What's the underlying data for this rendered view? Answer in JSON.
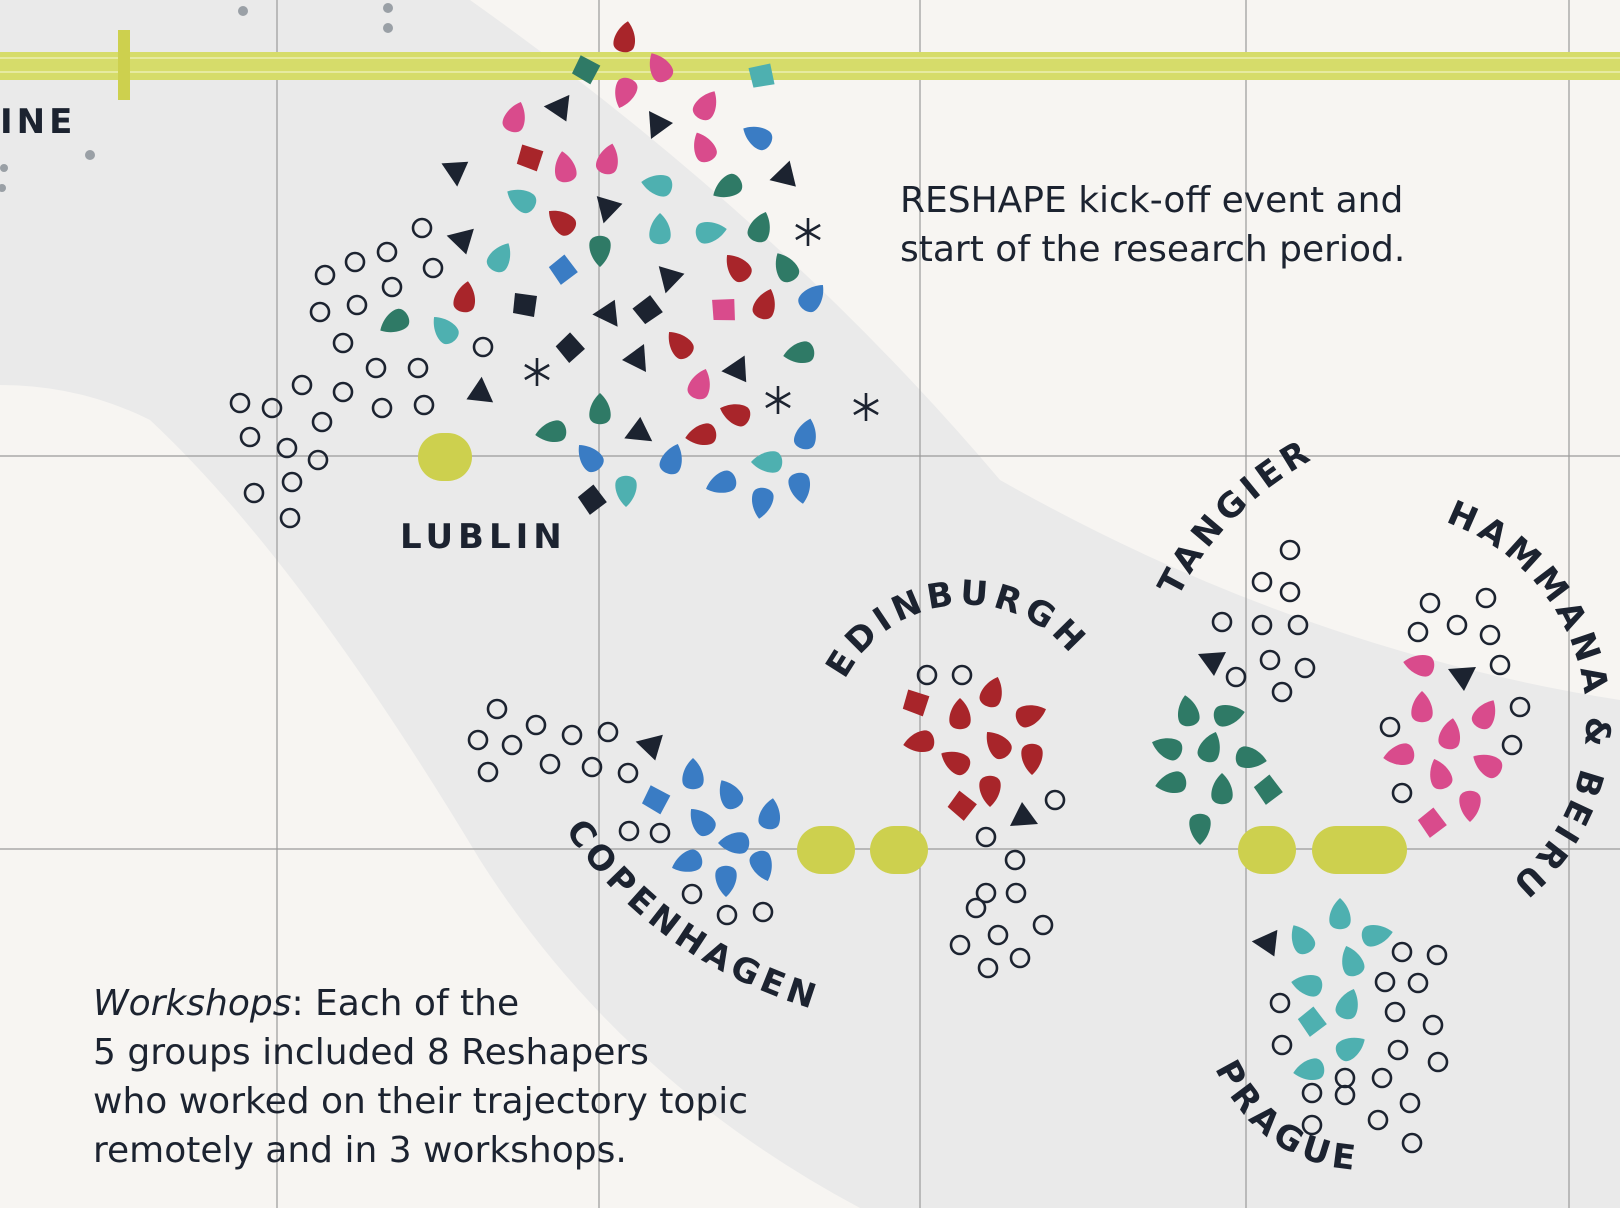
{
  "timeline_label": "INE",
  "kickoff_note": "RESHAPE kick-off event and start of the research period.",
  "workshops_note": {
    "emphasis": "Workshops",
    "text_line1": ": Each of the",
    "text_line2": "5 groups included 8 Reshapers",
    "text_line3": "who worked on their trajectory topic",
    "text_line4": "remotely and in 3 workshops."
  },
  "cities": {
    "lublin": "LUBLIN",
    "copenhagen": "COPENHAGEN",
    "edinburgh": "EDINBURGH",
    "tangier": "TANGIER",
    "hammana_beirut": "HAMMANA & BEIRUT",
    "prague": "PRAGUE"
  },
  "colors": {
    "background": "#f7f5f2",
    "band": "#eaeaea",
    "timeline": "#d6dc6a",
    "event_marker": "#cdd04e",
    "grid": "#9a9a9a",
    "navy": "#1c2330",
    "pink": "#d94b8c",
    "red": "#a8252a",
    "green": "#2f7a66",
    "teal": "#4eb0b0",
    "blue": "#3a7cc4",
    "grey_dot": "#9aa0a6"
  }
}
